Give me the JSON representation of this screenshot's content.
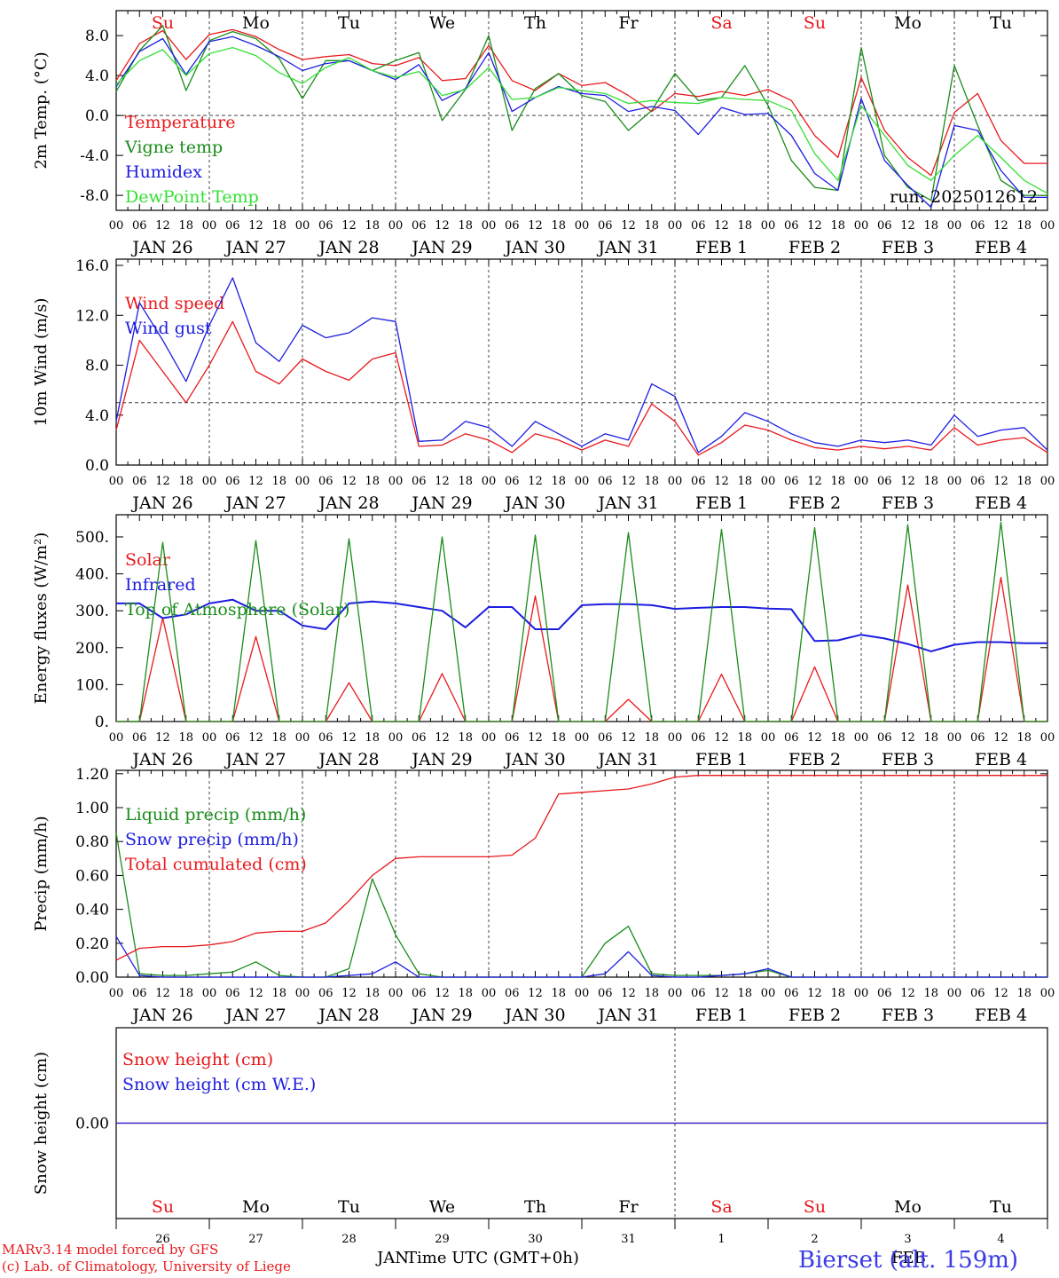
{
  "footer": {
    "credit_line1": "MARv3.14 model forced by GFS",
    "credit_line2": "(c) Lab. of Climatology, University of Liege",
    "xaxis_title": "Time UTC (GMT+0h)",
    "month_left": "JAN",
    "month_right": "FEB",
    "station": "Bierset (alt. 159m)"
  },
  "colors": {
    "red": "#e8191d",
    "green": "#1a8c1a",
    "blue": "#1d1de0",
    "lightgreen": "#33e033",
    "dark_green": "#228b22"
  },
  "axis": {
    "hour_ticks": [
      "00",
      "06",
      "12",
      "18"
    ],
    "end_tick": "00",
    "date_labels": [
      "JAN 26",
      "JAN 27",
      "JAN 28",
      "JAN 29",
      "JAN 30",
      "JAN 31",
      "FEB  1",
      "FEB  2",
      "FEB  3",
      "FEB  4"
    ],
    "day_names": [
      "Su",
      "Mo",
      "Tu",
      "We",
      "Th",
      "Fr",
      "Sa",
      "Su",
      "Mo",
      "Tu"
    ],
    "day_name_colors": [
      "red",
      "black",
      "black",
      "black",
      "black",
      "black",
      "red",
      "red",
      "black",
      "black"
    ],
    "day_numbers": [
      "26",
      "27",
      "28",
      "29",
      "30",
      "31",
      "1",
      "2",
      "3",
      "4"
    ]
  },
  "chart_data": [
    {
      "type": "line",
      "ylabel": "2m Temp. (°C)",
      "ylim": [
        -9.5,
        10.5
      ],
      "yticks": [
        "-8.0",
        "-4.0",
        "0.0",
        "4.0",
        "8.0"
      ],
      "ytick_values": [
        -8,
        -4,
        0,
        4,
        8
      ],
      "reference_line": 0,
      "annotation": "run: 2025012612",
      "x_hours_from_jan26_00": [
        0,
        6,
        12,
        18,
        24,
        30,
        36,
        42,
        48,
        54,
        60,
        66,
        72,
        78,
        84,
        90,
        96,
        102,
        108,
        114,
        120,
        126,
        132,
        138,
        144,
        150,
        156,
        162,
        168,
        174,
        180,
        186,
        192,
        198,
        204,
        210,
        216,
        222,
        228,
        234,
        240
      ],
      "series": [
        {
          "name": "Temperature",
          "color": "red",
          "values": [
            3.5,
            7.2,
            8.5,
            5.6,
            8.1,
            8.6,
            7.9,
            6.6,
            5.6,
            5.9,
            6.1,
            5.2,
            5.0,
            5.8,
            3.5,
            3.7,
            7.0,
            3.5,
            2.5,
            4.2,
            3.0,
            3.3,
            2.0,
            0.4,
            2.2,
            1.9,
            2.4,
            2.0,
            2.6,
            1.5,
            -2.0,
            -4.2,
            3.8,
            -1.5,
            -4.2,
            -6.0,
            0.3,
            2.2,
            -2.5,
            -4.8,
            -4.8
          ]
        },
        {
          "name": "Vigne temp",
          "color": "green",
          "values": [
            2.4,
            6.5,
            9.0,
            2.5,
            7.5,
            8.4,
            7.7,
            5.7,
            1.7,
            5.5,
            5.5,
            4.5,
            5.5,
            6.3,
            -0.5,
            2.6,
            8.0,
            -1.5,
            2.7,
            4.2,
            2.0,
            1.4,
            -1.5,
            0.5,
            4.2,
            1.5,
            1.8,
            5.0,
            1.0,
            -4.5,
            -7.2,
            -7.5,
            6.8,
            -4.0,
            -7.2,
            -8.5,
            5.0,
            -1.0,
            -6.5,
            -8.0,
            -8.0
          ]
        },
        {
          "name": "Humidex",
          "color": "blue",
          "values": [
            2.9,
            6.4,
            7.7,
            4.1,
            7.4,
            7.9,
            7.0,
            5.9,
            4.5,
            5.2,
            5.5,
            4.5,
            3.6,
            5.1,
            1.5,
            2.7,
            6.3,
            0.4,
            1.8,
            2.9,
            2.2,
            2.0,
            0.4,
            0.9,
            0.5,
            -1.9,
            0.8,
            0.1,
            0.2,
            -2.0,
            -5.8,
            -7.5,
            1.7,
            -4.5,
            -7.0,
            -9.2,
            -1.0,
            -1.5,
            -5.5,
            -8.2,
            -8.2
          ]
        },
        {
          "name": "DewPoint Temp",
          "color": "lightgreen",
          "values": [
            3.1,
            5.5,
            6.6,
            4.0,
            6.2,
            6.8,
            6.0,
            4.3,
            3.2,
            4.8,
            5.8,
            4.5,
            3.8,
            4.4,
            2.0,
            2.6,
            4.8,
            1.6,
            1.8,
            2.8,
            2.5,
            2.2,
            1.2,
            1.5,
            1.3,
            1.2,
            1.8,
            1.6,
            1.5,
            0.5,
            -3.8,
            -6.5,
            1.0,
            -2.0,
            -5.0,
            -6.5,
            -4.0,
            -2.0,
            -4.2,
            -6.5,
            -7.8
          ]
        }
      ]
    },
    {
      "type": "line",
      "ylabel": "10m Wind (m/s)",
      "ylim": [
        0,
        16.5
      ],
      "yticks": [
        "0.0",
        "4.0",
        "8.0",
        "12.0",
        "16.0"
      ],
      "ytick_values": [
        0,
        4,
        8,
        12,
        16
      ],
      "reference_line": 5,
      "x_hours_from_jan26_00": [
        0,
        6,
        12,
        18,
        24,
        30,
        36,
        42,
        48,
        54,
        60,
        66,
        72,
        78,
        84,
        90,
        96,
        102,
        108,
        114,
        120,
        126,
        132,
        138,
        144,
        150,
        156,
        162,
        168,
        174,
        180,
        186,
        192,
        198,
        204,
        210,
        216,
        222,
        228,
        234,
        240
      ],
      "series": [
        {
          "name": "Wind speed",
          "color": "red",
          "values": [
            2.8,
            10.0,
            7.5,
            5.0,
            8.0,
            11.5,
            7.5,
            6.5,
            8.5,
            7.5,
            6.8,
            8.5,
            9.0,
            1.5,
            1.6,
            2.5,
            2.0,
            1.0,
            2.5,
            2.0,
            1.2,
            2.0,
            1.5,
            4.9,
            3.5,
            0.8,
            1.8,
            3.2,
            2.8,
            2.0,
            1.4,
            1.2,
            1.5,
            1.3,
            1.5,
            1.2,
            3.0,
            1.6,
            2.0,
            2.2,
            1.0
          ]
        },
        {
          "name": "Wind gust",
          "color": "blue",
          "values": [
            3.5,
            13.0,
            10.0,
            6.7,
            11.2,
            15.0,
            9.8,
            8.3,
            11.2,
            10.2,
            10.6,
            11.8,
            11.5,
            1.9,
            2.0,
            3.5,
            3.0,
            1.5,
            3.5,
            2.5,
            1.5,
            2.5,
            2.0,
            6.5,
            5.5,
            1.0,
            2.3,
            4.2,
            3.5,
            2.5,
            1.8,
            1.5,
            2.0,
            1.8,
            2.0,
            1.6,
            4.0,
            2.3,
            2.8,
            3.0,
            1.2
          ]
        }
      ]
    },
    {
      "type": "line",
      "ylabel": "Energy fluxes (W/m²)",
      "ylim": [
        0,
        560
      ],
      "yticks": [
        "0.",
        "100.",
        "200.",
        "300.",
        "400.",
        "500."
      ],
      "ytick_values": [
        0,
        100,
        200,
        300,
        400,
        500
      ],
      "x_hours_from_jan26_00": [
        0,
        6,
        12,
        18,
        24,
        30,
        36,
        42,
        48,
        54,
        60,
        66,
        72,
        78,
        84,
        90,
        96,
        102,
        108,
        114,
        120,
        126,
        132,
        138,
        144,
        150,
        156,
        162,
        168,
        174,
        180,
        186,
        192,
        198,
        204,
        210,
        216,
        222,
        228,
        234,
        240
      ],
      "series": [
        {
          "name": "Solar",
          "color": "red",
          "values": [
            0,
            0,
            280,
            0,
            0,
            0,
            230,
            0,
            0,
            0,
            105,
            0,
            0,
            0,
            130,
            0,
            0,
            0,
            340,
            0,
            0,
            0,
            60,
            0,
            0,
            0,
            128,
            0,
            0,
            0,
            148,
            0,
            0,
            0,
            370,
            0,
            0,
            0,
            390,
            0,
            0
          ]
        },
        {
          "name": "Infrared",
          "color": "blue",
          "values": [
            320,
            320,
            280,
            290,
            320,
            330,
            300,
            300,
            260,
            250,
            320,
            325,
            320,
            310,
            300,
            255,
            310,
            310,
            250,
            250,
            315,
            318,
            318,
            315,
            305,
            308,
            310,
            310,
            306,
            304,
            218,
            220,
            235,
            225,
            210,
            190,
            208,
            215,
            215,
            212,
            212
          ]
        },
        {
          "name": "Top of Atmosphere (Solar)",
          "color": "green",
          "values": [
            0,
            0,
            485,
            0,
            0,
            0,
            490,
            0,
            0,
            0,
            495,
            0,
            0,
            0,
            500,
            0,
            0,
            0,
            505,
            0,
            0,
            0,
            512,
            0,
            0,
            0,
            520,
            0,
            0,
            0,
            525,
            0,
            0,
            0,
            533,
            0,
            0,
            0,
            540,
            0,
            0
          ]
        }
      ]
    },
    {
      "type": "line",
      "ylabel": "Precip (mm/h)",
      "ylim": [
        0,
        1.22
      ],
      "yticks": [
        "0.00",
        "0.20",
        "0.40",
        "0.60",
        "0.80",
        "1.00",
        "1.20"
      ],
      "ytick_values": [
        0,
        0.2,
        0.4,
        0.6,
        0.8,
        1.0,
        1.2
      ],
      "x_hours_from_jan26_00": [
        0,
        6,
        12,
        18,
        24,
        30,
        36,
        42,
        48,
        54,
        60,
        66,
        72,
        78,
        84,
        90,
        96,
        102,
        108,
        114,
        120,
        126,
        132,
        138,
        144,
        150,
        156,
        162,
        168,
        174,
        180,
        186,
        192,
        198,
        204,
        210,
        216,
        222,
        228,
        234,
        240
      ],
      "series": [
        {
          "name": "Liquid precip (mm/h)",
          "color": "green",
          "values": [
            0.85,
            0.02,
            0.01,
            0.01,
            0.02,
            0.03,
            0.09,
            0.01,
            0.0,
            0.0,
            0.05,
            0.58,
            0.25,
            0.02,
            0.0,
            0.0,
            0.0,
            0.0,
            0.0,
            0.0,
            0.0,
            0.2,
            0.3,
            0.02,
            0.01,
            0.01,
            0.01,
            0.02,
            0.04,
            0.0,
            0.0,
            0.0,
            0.0,
            0.0,
            0.0,
            0.0,
            0.0,
            0.0,
            0.0,
            0.0,
            0.0
          ]
        },
        {
          "name": "Snow precip (mm/h)",
          "color": "blue",
          "values": [
            0.24,
            0.01,
            0.0,
            0.0,
            0.0,
            0.0,
            0.0,
            0.0,
            0.0,
            0.0,
            0.01,
            0.02,
            0.09,
            0.0,
            0.0,
            0.0,
            0.0,
            0.0,
            0.0,
            0.0,
            0.0,
            0.02,
            0.15,
            0.01,
            0.0,
            0.0,
            0.01,
            0.02,
            0.05,
            0.0,
            0.0,
            0.0,
            0.0,
            0.0,
            0.0,
            0.0,
            0.0,
            0.0,
            0.0,
            0.0,
            0.0
          ]
        },
        {
          "name": "Total cumulated (cm)",
          "color": "red",
          "values": [
            0.1,
            0.17,
            0.18,
            0.18,
            0.19,
            0.21,
            0.26,
            0.27,
            0.27,
            0.32,
            0.45,
            0.6,
            0.7,
            0.71,
            0.71,
            0.71,
            0.71,
            0.72,
            0.82,
            1.08,
            1.09,
            1.1,
            1.11,
            1.14,
            1.18,
            1.19,
            1.19,
            1.19,
            1.19,
            1.19,
            1.19,
            1.19,
            1.19,
            1.19,
            1.19,
            1.19,
            1.19,
            1.19,
            1.19,
            1.19,
            1.19
          ]
        }
      ]
    },
    {
      "type": "line",
      "ylabel": "Snow height (cm)",
      "ylim": [
        -1,
        1
      ],
      "yticks": [
        "0.00"
      ],
      "ytick_values": [
        0
      ],
      "x_hours_from_jan26_00": [
        0,
        240
      ],
      "series": [
        {
          "name": "Snow height (cm)",
          "color": "red",
          "values": [
            0,
            0
          ]
        },
        {
          "name": "Snow height (cm W.E.)",
          "color": "blue",
          "values": [
            0,
            0
          ]
        }
      ]
    }
  ]
}
